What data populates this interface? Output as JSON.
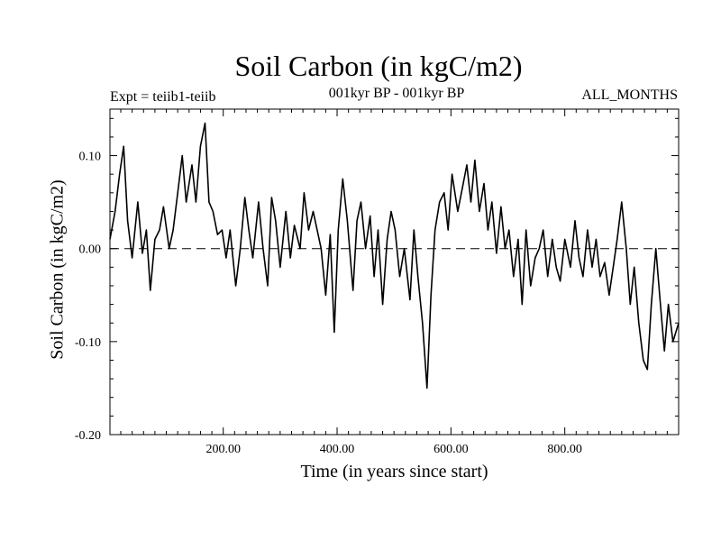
{
  "header": {
    "title": "Soil Carbon (in kgC/m2)",
    "experiment": "Expt = teiib1-teiib",
    "period": "001kyr BP - 001kyr BP",
    "months": "ALL_MONTHS"
  },
  "chart_data": {
    "type": "line",
    "title": "Soil Carbon (in kgC/m2)",
    "xlabel": "Time (in years since start)",
    "ylabel": "Soil Carbon (in kgC/m2)",
    "xlim": [
      1,
      1000
    ],
    "ylim": [
      -0.2,
      0.15
    ],
    "x_ticks": [
      200,
      400,
      600,
      800
    ],
    "x_tick_labels": [
      "200.00",
      "400.00",
      "600.00",
      "800.00"
    ],
    "y_ticks": [
      0.1,
      0.0,
      -0.1,
      -0.2
    ],
    "y_tick_labels": [
      "0.10",
      "0.00",
      "-0.10",
      "-0.20"
    ],
    "zero_line": "dashed",
    "grid": false,
    "series": [
      {
        "x": [
          1,
          10,
          18,
          25,
          32,
          40,
          50,
          58,
          65,
          72,
          80,
          88,
          95,
          105,
          112,
          120,
          128,
          135,
          145,
          152,
          160,
          168,
          175,
          182,
          190,
          198,
          205,
          212,
          222,
          230,
          238,
          245,
          252,
          262,
          270,
          278,
          285,
          292,
          300,
          310,
          318,
          325,
          335,
          342,
          350,
          358,
          365,
          372,
          380,
          388,
          395,
          402,
          410,
          418,
          428,
          435,
          442,
          450,
          458,
          465,
          472,
          480,
          488,
          495,
          502,
          510,
          518,
          528,
          535,
          542,
          550,
          558,
          565,
          572,
          580,
          588,
          595,
          602,
          612,
          620,
          628,
          635,
          642,
          650,
          658,
          665,
          672,
          680,
          688,
          695,
          702,
          710,
          718,
          725,
          732,
          740,
          748,
          755,
          762,
          770,
          778,
          785,
          792,
          800,
          810,
          818,
          825,
          832,
          840,
          848,
          855,
          862,
          870,
          878,
          885,
          892,
          900,
          908,
          915,
          922,
          930,
          938,
          945,
          952,
          960,
          968,
          975,
          982,
          990,
          1000
        ],
        "y": [
          0.01,
          0.04,
          0.08,
          0.11,
          0.03,
          -0.01,
          0.05,
          -0.005,
          0.02,
          -0.045,
          0.01,
          0.02,
          0.045,
          0.0,
          0.02,
          0.06,
          0.1,
          0.05,
          0.09,
          0.05,
          0.11,
          0.135,
          0.05,
          0.04,
          0.015,
          0.02,
          -0.01,
          0.02,
          -0.04,
          0.0,
          0.055,
          0.02,
          -0.01,
          0.05,
          0.0,
          -0.04,
          0.055,
          0.03,
          -0.02,
          0.04,
          -0.01,
          0.025,
          0.0,
          0.06,
          0.02,
          0.04,
          0.02,
          0.0,
          -0.05,
          0.015,
          -0.09,
          0.02,
          0.075,
          0.03,
          -0.045,
          0.03,
          0.05,
          0.0,
          0.035,
          -0.03,
          0.02,
          -0.06,
          0.01,
          0.04,
          0.02,
          -0.03,
          0.0,
          -0.055,
          0.02,
          -0.03,
          -0.08,
          -0.15,
          -0.05,
          0.02,
          0.05,
          0.06,
          0.02,
          0.08,
          0.04,
          0.065,
          0.09,
          0.05,
          0.095,
          0.04,
          0.07,
          0.02,
          0.05,
          -0.005,
          0.045,
          0.0,
          0.02,
          -0.03,
          0.01,
          -0.06,
          0.02,
          -0.04,
          -0.01,
          0.0,
          0.02,
          -0.03,
          0.01,
          -0.02,
          -0.035,
          0.01,
          -0.02,
          0.03,
          -0.01,
          -0.03,
          0.02,
          -0.02,
          0.01,
          -0.03,
          -0.015,
          -0.05,
          -0.02,
          0.01,
          0.05,
          0.0,
          -0.06,
          -0.02,
          -0.08,
          -0.12,
          -0.13,
          -0.06,
          0.0,
          -0.06,
          -0.11,
          -0.06,
          -0.1,
          -0.08
        ]
      }
    ]
  }
}
